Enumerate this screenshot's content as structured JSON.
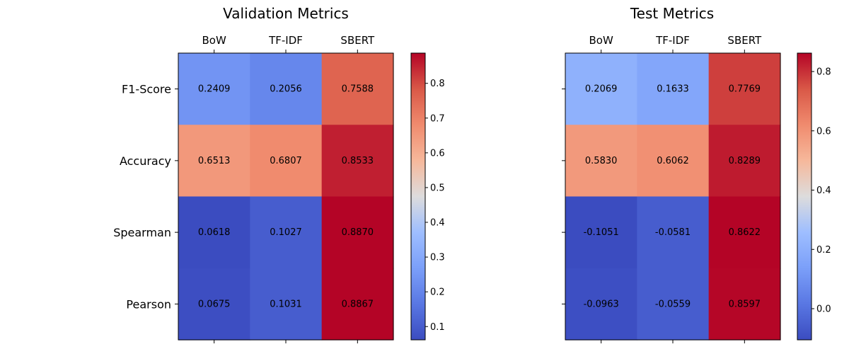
{
  "chart_data": [
    {
      "type": "heatmap",
      "title": "Validation Metrics",
      "columns": [
        "BoW",
        "TF-IDF",
        "SBERT"
      ],
      "rows": [
        "F1-Score",
        "Accuracy",
        "Spearman",
        "Pearson"
      ],
      "values": [
        [
          0.2409,
          0.2056,
          0.7588
        ],
        [
          0.6513,
          0.6807,
          0.8533
        ],
        [
          0.0618,
          0.1027,
          0.887
        ],
        [
          0.0675,
          0.1031,
          0.8867
        ]
      ],
      "value_labels": [
        [
          "0.2409",
          "0.2056",
          "0.7588"
        ],
        [
          "0.6513",
          "0.6807",
          "0.8533"
        ],
        [
          "0.0618",
          "0.1027",
          "0.8870"
        ],
        [
          "0.0675",
          "0.1031",
          "0.8867"
        ]
      ],
      "colormap": "coolwarm",
      "colorbar": {
        "range": [
          0.0618,
          0.887
        ],
        "ticks": [
          0.1,
          0.2,
          0.3,
          0.4,
          0.5,
          0.6,
          0.7,
          0.8
        ],
        "tick_labels": [
          "0.1",
          "0.2",
          "0.3",
          "0.4",
          "0.5",
          "0.6",
          "0.7",
          "0.8"
        ]
      },
      "row_labels_visible": true,
      "column_labels_position": "top"
    },
    {
      "type": "heatmap",
      "title": "Test Metrics",
      "columns": [
        "BoW",
        "TF-IDF",
        "SBERT"
      ],
      "rows": [
        "F1-Score",
        "Accuracy",
        "Spearman",
        "Pearson"
      ],
      "values": [
        [
          0.2069,
          0.1633,
          0.7769
        ],
        [
          0.583,
          0.6062,
          0.8289
        ],
        [
          -0.1051,
          -0.0581,
          0.8622
        ],
        [
          -0.0963,
          -0.0559,
          0.8597
        ]
      ],
      "value_labels": [
        [
          "0.2069",
          "0.1633",
          "0.7769"
        ],
        [
          "0.5830",
          "0.6062",
          "0.8289"
        ],
        [
          "-0.1051",
          "-0.0581",
          "0.8622"
        ],
        [
          "-0.0963",
          "-0.0559",
          "0.8597"
        ]
      ],
      "colormap": "coolwarm",
      "colorbar": {
        "range": [
          -0.1051,
          0.8622
        ],
        "ticks": [
          0.0,
          0.2,
          0.4,
          0.6,
          0.8
        ],
        "tick_labels": [
          "0.0",
          "0.2",
          "0.4",
          "0.6",
          "0.8"
        ]
      },
      "row_labels_visible": false,
      "column_labels_position": "top"
    }
  ]
}
